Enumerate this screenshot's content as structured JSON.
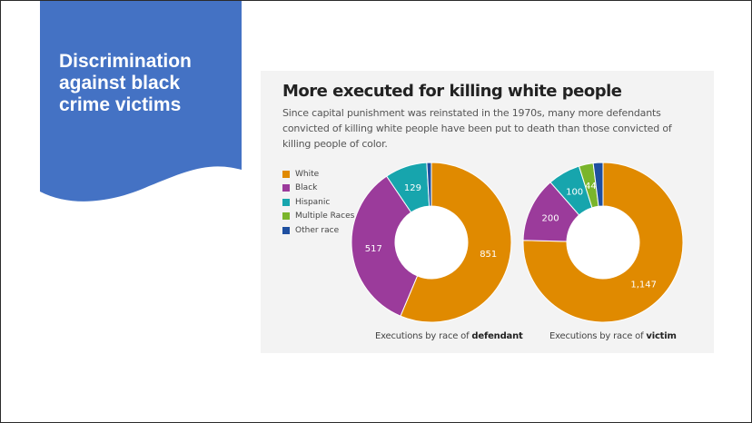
{
  "slide": {
    "title": "Discrimination against black crime victims",
    "banner_color": "#4472c4"
  },
  "chart_panel": {
    "title": "More executed for killing white people",
    "subtitle": "Since capital punishment was reinstated in the 1970s, many more defendants convicted of killing white people have been put to death than those convicted of killing people of color."
  },
  "chart_data": [
    {
      "type": "pie",
      "donut": true,
      "caption_prefix": "Executions by race of ",
      "caption_emphasis": "defendant",
      "legend_placement": "left",
      "categories": [
        "White",
        "Black",
        "Hispanic",
        "Multiple Races",
        "Other race"
      ],
      "colors": [
        "#e08a00",
        "#9b3b9b",
        "#17a5ad",
        "#7ab52b",
        "#1f4fa0"
      ],
      "values": [
        851,
        517,
        129,
        0,
        14
      ],
      "labels": [
        "851",
        "517",
        "129",
        "",
        ""
      ]
    },
    {
      "type": "pie",
      "donut": true,
      "caption_prefix": "Executions by race of ",
      "caption_emphasis": "victim",
      "categories": [
        "White",
        "Black",
        "Hispanic",
        "Multiple Races",
        "Other race"
      ],
      "colors": [
        "#e08a00",
        "#9b3b9b",
        "#17a5ad",
        "#7ab52b",
        "#1f4fa0"
      ],
      "values": [
        1147,
        200,
        100,
        44,
        30
      ],
      "labels": [
        "1,147",
        "200",
        "100",
        "44",
        ""
      ]
    }
  ]
}
